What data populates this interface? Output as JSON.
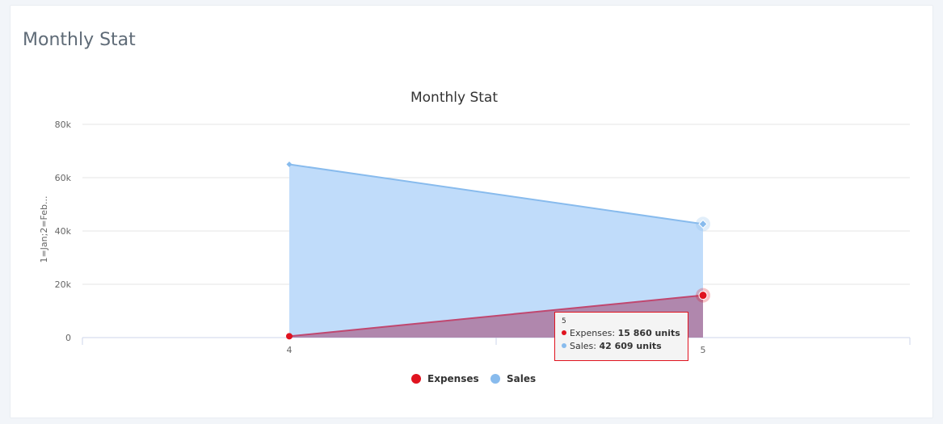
{
  "card": {
    "title": "Monthly Stat"
  },
  "colors": {
    "expenses": "#e0131f",
    "sales": "#88bbed"
  },
  "chart_data": {
    "type": "area",
    "title": "Monthly Stat",
    "ylabel": "1=Jan;2=Feb...",
    "xlabel": "",
    "x": [
      4,
      5
    ],
    "xlim": [
      3.5,
      5.5
    ],
    "ylim": [
      0,
      80000
    ],
    "y_ticks": [
      "0",
      "20k",
      "40k",
      "60k",
      "80k"
    ],
    "y_tick_values": [
      0,
      20000,
      40000,
      60000,
      80000
    ],
    "grid": true,
    "legend_position": "bottom",
    "series": [
      {
        "name": "Expenses",
        "values": [
          500,
          15860
        ]
      },
      {
        "name": "Sales",
        "values": [
          65000,
          42609
        ]
      }
    ],
    "tooltip": {
      "header": "5",
      "rows": [
        {
          "label": "Expenses: ",
          "value": "15 860 units"
        },
        {
          "label": "Sales: ",
          "value": "42 609 units"
        }
      ]
    }
  }
}
